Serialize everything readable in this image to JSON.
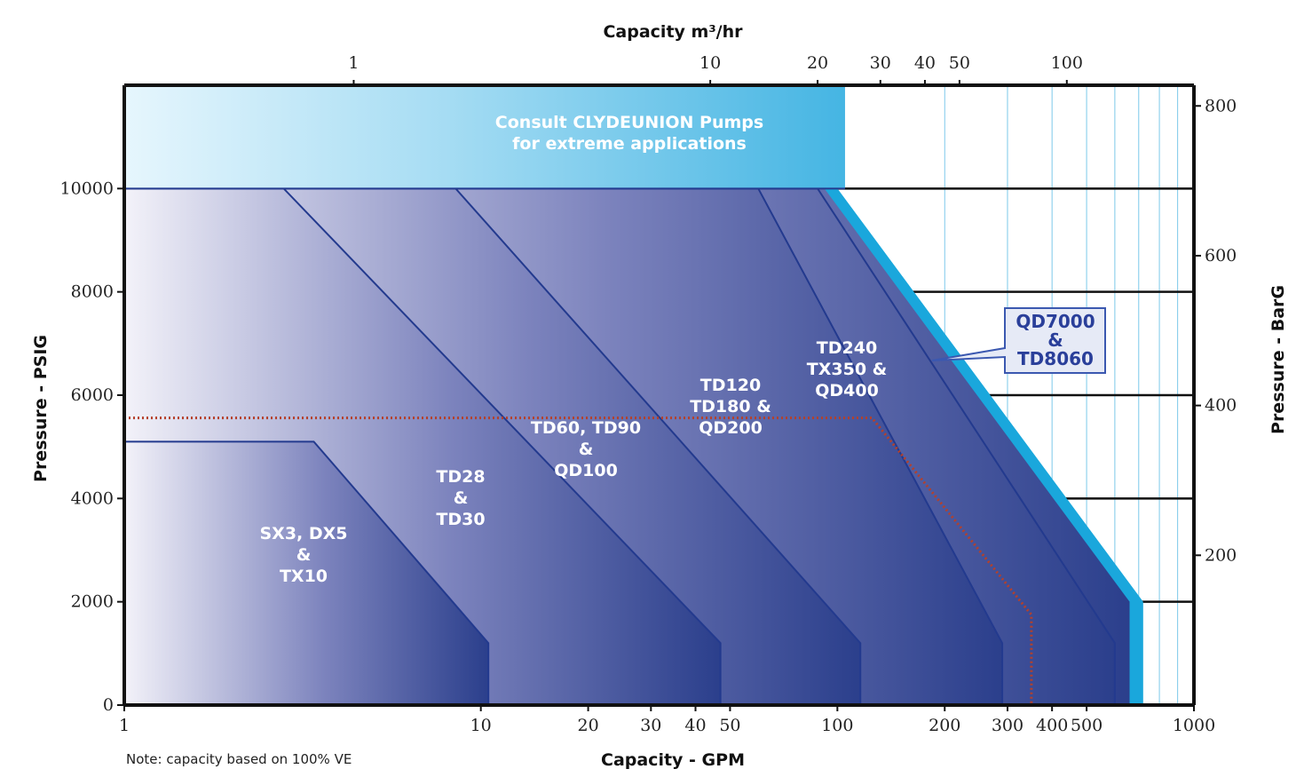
{
  "chart_data": {
    "type": "area",
    "top_axis_title": "Capacity m³/hr",
    "bottom_axis_title": "Capacity - GPM",
    "left_axis_title": "Pressure - PSIG",
    "right_axis_title": "Pressure - BarG",
    "note": "Note: capacity based on 100% VE",
    "x_scale": "log",
    "x_range_gpm": [
      1,
      1000
    ],
    "y_range_psig": [
      0,
      12000
    ],
    "bottom_ticks": [
      {
        "v": 1,
        "label": "1"
      },
      {
        "v": 10,
        "label": "10"
      },
      {
        "v": 20,
        "label": "20"
      },
      {
        "v": 30,
        "label": "30"
      },
      {
        "v": 40,
        "label": "40"
      },
      {
        "v": 50,
        "label": "50"
      },
      {
        "v": 100,
        "label": "100"
      },
      {
        "v": 200,
        "label": "200"
      },
      {
        "v": 300,
        "label": "300"
      },
      {
        "v": 400,
        "label": "400"
      },
      {
        "v": 500,
        "label": "500"
      },
      {
        "v": 1000,
        "label": "1000"
      }
    ],
    "top_ticks_gpm": [
      {
        "v": 4.4,
        "label": "1"
      },
      {
        "v": 44,
        "label": "10"
      },
      {
        "v": 88,
        "label": "20"
      },
      {
        "v": 132,
        "label": "30"
      },
      {
        "v": 176,
        "label": "40"
      },
      {
        "v": 220,
        "label": "50"
      },
      {
        "v": 440,
        "label": "100"
      }
    ],
    "left_ticks": [
      {
        "v": 0,
        "label": "0"
      },
      {
        "v": 2000,
        "label": "2000"
      },
      {
        "v": 4000,
        "label": "4000"
      },
      {
        "v": 6000,
        "label": "6000"
      },
      {
        "v": 8000,
        "label": "8000"
      },
      {
        "v": 10000,
        "label": "10000"
      }
    ],
    "right_ticks_psig": [
      {
        "v": 2900,
        "label": "200"
      },
      {
        "v": 5800,
        "label": "400"
      },
      {
        "v": 8700,
        "label": "600"
      },
      {
        "v": 11600,
        "label": "800"
      }
    ],
    "consult_region": {
      "label_lines": [
        "Consult CLYDEUNION Pumps",
        "for extreme applications"
      ],
      "x_max_gpm": 105,
      "y_from": 10000,
      "y_to": 12000
    },
    "series": [
      {
        "name_lines": [
          "QD7000",
          "&",
          "TD8060"
        ],
        "points": [
          [
            1,
            0
          ],
          [
            1,
            10000
          ],
          [
            100,
            10000
          ],
          [
            720,
            2000
          ],
          [
            720,
            0
          ]
        ],
        "callout": true
      },
      {
        "name_lines": [
          "TD240",
          "TX350 &",
          "QD400"
        ],
        "points": [
          [
            1,
            0
          ],
          [
            1,
            10000
          ],
          [
            88,
            10000
          ],
          [
            600,
            1200
          ],
          [
            600,
            0
          ]
        ]
      },
      {
        "name_lines": [
          "TD120",
          "TD180 &",
          "QD200"
        ],
        "points": [
          [
            1,
            0
          ],
          [
            1,
            10000
          ],
          [
            60,
            10000
          ],
          [
            290,
            1200
          ],
          [
            290,
            0
          ]
        ]
      },
      {
        "name_lines": [
          "TD60, TD90",
          "&",
          "QD100"
        ],
        "points": [
          [
            1,
            0
          ],
          [
            1,
            10000
          ],
          [
            8.5,
            10000
          ],
          [
            116,
            1200
          ],
          [
            116,
            0
          ]
        ]
      },
      {
        "name_lines": [
          "TD28",
          "&",
          "TD30"
        ],
        "points": [
          [
            1,
            0
          ],
          [
            1,
            10000
          ],
          [
            2.8,
            10000
          ],
          [
            47,
            1200
          ],
          [
            47,
            0
          ]
        ]
      },
      {
        "name_lines": [
          "SX3, DX5",
          "&",
          "TX10"
        ],
        "points": [
          [
            1,
            0
          ],
          [
            1,
            5100
          ],
          [
            3.4,
            5100
          ],
          [
            10.5,
            1200
          ],
          [
            10.5,
            0
          ]
        ]
      }
    ],
    "reference_line": {
      "points": [
        [
          1,
          5560
        ],
        [
          125,
          5560
        ],
        [
          350,
          1750
        ],
        [
          350,
          0
        ]
      ]
    },
    "colors": {
      "consult": "#5cc0e8",
      "highlight_edge": "#1aa7dc",
      "series_dark": "#2b3f8c",
      "series_light": "#f2f1f8",
      "outline": "#233a8e",
      "reference_line": "#b5402a",
      "callout_border": "#3b58b0",
      "callout_fill": "#e6eaf6"
    }
  }
}
